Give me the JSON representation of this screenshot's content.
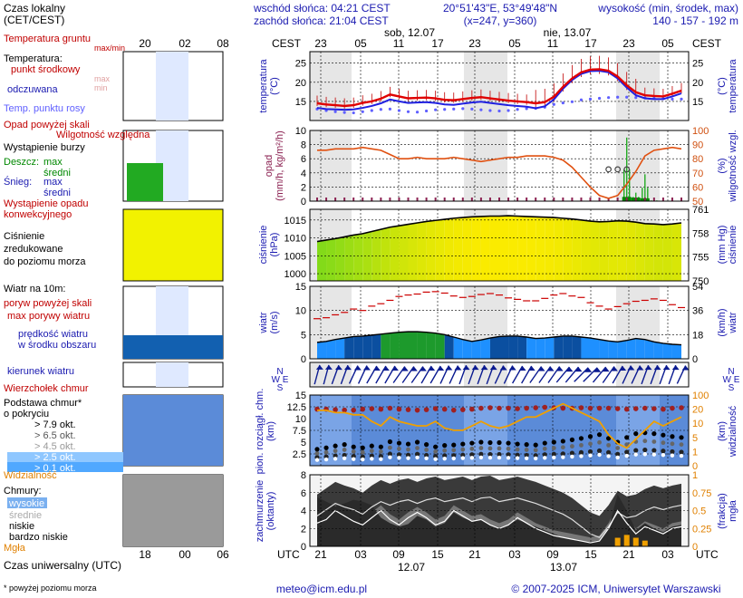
{
  "header": {
    "sunrise": "wschód słońca: 04:21 CEST",
    "sunset": "zachód słońca: 21:04 CEST",
    "coords": "20°51'43\"E, 53°49'48\"N",
    "grid": "(x=247, y=360)",
    "height_title": "wysokość (min, środek, max)",
    "height_vals": "140 - 157 - 192 m"
  },
  "legend": {
    "time_local": "Czas lokalny\n(CET/CEST)",
    "temp_ground": "Temperatura gruntu",
    "max_min": "max/min",
    "temperature": "Temperatura:",
    "mid_point": "punkt środkowy",
    "max_label": "max",
    "min_label": "min",
    "felt": "odczuwana",
    "dew_point": "Temp. punktu rosy",
    "precip_over": "Opad powyżej skali",
    "storm": "Wystąpienie burzy",
    "rain": "Deszcz:",
    "rain_max": "max",
    "rain_mid": "średni",
    "snow": "Śnieg:",
    "snow_max": "max",
    "snow_mid": "średni",
    "humidity": "Wilgotność względna",
    "conv": "Wystąpienie opadu\nkonwekcyjnego",
    "pressure": "Ciśnienie\nzredukowane\ndo poziomu morza",
    "wind_at": "Wiatr na 10m:",
    "gust_over": "poryw powyżej skali",
    "gust_max": "max porywy wiatru",
    "wind_avg": "prędkość wiatru\nw środku obszaru",
    "wind_dir": "kierunek wiatru",
    "cloud_top": "Wierzchołek chmur",
    "cloud_base": "Podstawa chmur*\no pokryciu",
    "okt_79": "> 7.9 okt.",
    "okt_65": "> 6.5 okt.",
    "okt_45": "> 4.5 okt.",
    "okt_25": "> 2.5 okt.",
    "okt_01": "> 0.1 okt.",
    "visibility": "Widzialność",
    "clouds": "Chmury:",
    "cl_high": "wysokie",
    "cl_mid": "średnie",
    "cl_low": "niskie",
    "cl_vlow": "bardzo niskie",
    "fog": "Mgła",
    "utc_time": "Czas uniwersalny (UTC)",
    "footnote": "* powyżej poziomu morza"
  },
  "axis_titles": {
    "cest": "CEST",
    "utc": "UTC",
    "temp_l": "temperatura\n(°C)",
    "temp_r": "(°C)\ntemperatura",
    "precip_l": "opad\n(mm/h, kg/m²/h)",
    "precip_r": "(%)\nwilgotność wzgl.",
    "press_l": "ciśnienie\n(hPa)",
    "press_r": "(mm Hg)\nciśnienie",
    "wind_l": "wiatr\n(m/s)",
    "wind_r": "(km/h)\nwiatr",
    "cloud_l": "pion. rozciągł. chm.\n(km)",
    "cloud_r": "(km)\nwidzialność",
    "cover_l": "zachmurzenie\n(oktanty)",
    "cover_r": "(frakcja)\nmgła",
    "compass": "N\nW  E\nS"
  },
  "time_axis": {
    "cest_ticks": [
      "23",
      "05",
      "11",
      "17",
      "23",
      "05",
      "11",
      "17",
      "23",
      "05"
    ],
    "utc_ticks": [
      "21",
      "03",
      "09",
      "15",
      "21",
      "03",
      "09",
      "15",
      "21",
      "03"
    ],
    "days_top": [
      "sob, 12.07",
      "nie, 13.07"
    ],
    "days_bottom": [
      "12.07",
      "13.07"
    ],
    "small_top": [
      "20",
      "02",
      "08"
    ],
    "small_bottom": [
      "18",
      "00",
      "06"
    ]
  },
  "footer": {
    "email": "meteo@icm.edu.pl",
    "copyright": "© 2007-2025 ICM, Uniwersytet Warszawski"
  },
  "colors": {
    "temp": "#e00000",
    "felt": "#2020e0",
    "dew": "#6060ff",
    "humidity": "#e05010",
    "pressure_fill": "#dde800",
    "wind_fill": "#0a7ad0",
    "visibility": "#f0a000",
    "night": "#e6e6e6",
    "cloud_bg": "#5b8bd8"
  },
  "chart_data": [
    {
      "id": "temperature",
      "type": "line",
      "ylabel": "temperatura (°C)",
      "ylim": [
        10,
        28
      ],
      "yticks": [
        15,
        20,
        25
      ],
      "series": [
        {
          "name": "punkt środkowy",
          "values": [
            14.5,
            14.2,
            14.0,
            13.8,
            14.0,
            14.6,
            15.0,
            15.7,
            16.8,
            16.3,
            15.8,
            15.9,
            16.0,
            15.8,
            15.4,
            15.3,
            15.6,
            15.9,
            16.1,
            15.8,
            15.5,
            15.2,
            15.0,
            14.8,
            14.5,
            14.8,
            16.2,
            18.8,
            21.0,
            22.6,
            23.3,
            23.4,
            23.0,
            21.5,
            19.2,
            17.4,
            16.6,
            16.4,
            16.3,
            17.0,
            17.8
          ]
        },
        {
          "name": "odczuwana",
          "values": [
            13.3,
            13.0,
            12.9,
            12.8,
            12.9,
            13.3,
            13.8,
            14.5,
            15.5,
            15.0,
            14.6,
            14.7,
            14.8,
            14.6,
            14.2,
            14.1,
            14.4,
            14.7,
            14.9,
            14.6,
            14.3,
            14.0,
            13.8,
            13.6,
            13.2,
            13.7,
            15.5,
            18.3,
            20.6,
            22.2,
            22.9,
            23.0,
            22.6,
            21.0,
            18.6,
            16.6,
            15.8,
            15.6,
            15.6,
            16.3,
            17.1
          ]
        },
        {
          "name": "Temp. punktu rosy",
          "values": [
            13.0,
            12.6,
            12.3,
            12.1,
            12.0,
            12.3,
            12.6,
            12.9,
            13.0,
            12.6,
            12.3,
            12.2,
            12.5,
            12.8,
            12.9,
            13.0,
            13.1,
            13.0,
            12.8,
            12.6,
            12.5,
            12.6,
            12.9,
            13.1,
            13.2,
            13.5,
            14.2,
            14.6,
            14.9,
            15.4,
            15.6,
            15.8,
            16.0,
            16.1,
            16.1,
            16.0,
            15.9,
            15.8,
            15.7,
            15.6,
            15.6
          ]
        }
      ]
    },
    {
      "id": "precipitation",
      "type": "line",
      "ylabel": "opad (mm/h, kg/m²/h)",
      "ylim": [
        0,
        10
      ],
      "yticks": [
        0,
        2,
        4,
        6,
        8,
        10
      ],
      "y2label": "wilgotność wzgl. (%)",
      "y2lim": [
        50,
        100
      ],
      "y2ticks": [
        50,
        60,
        70,
        80,
        90,
        100
      ],
      "series": [
        {
          "name": "Wilgotność względna",
          "values": [
            86,
            86,
            87,
            87,
            87,
            88,
            87,
            86,
            83,
            80,
            80,
            81,
            80,
            80,
            80,
            81,
            80,
            79,
            78,
            79,
            80,
            81,
            81,
            82,
            82,
            82,
            81,
            79,
            74,
            67,
            60,
            54,
            52,
            54,
            62,
            71,
            82,
            86,
            87,
            88,
            87
          ]
        },
        {
          "name": "Deszcz max",
          "values": [
            0,
            0,
            0,
            0,
            0,
            0,
            0,
            0,
            0,
            0,
            0,
            0,
            0,
            0,
            0,
            0,
            0,
            0,
            0,
            0,
            0,
            0,
            0,
            0,
            0,
            0,
            0,
            0,
            0,
            0,
            0,
            0,
            0,
            0,
            9.0,
            1.2,
            3.8,
            0.2,
            0,
            0,
            0
          ]
        },
        {
          "name": "Deszcz średni",
          "values": [
            0,
            0,
            0,
            0,
            0,
            0,
            0,
            0,
            0,
            0,
            0,
            0,
            0,
            0,
            0,
            0,
            0,
            0,
            0,
            0,
            0,
            0,
            0,
            0,
            0,
            0,
            0,
            0,
            0,
            0,
            0,
            0,
            0,
            0,
            0.6,
            0.5,
            0.4,
            0,
            0,
            0,
            0
          ]
        }
      ]
    },
    {
      "id": "pressure",
      "type": "area",
      "ylabel": "ciśnienie (hPa)",
      "ylim": [
        998,
        1018
      ],
      "yticks": [
        1000,
        1005,
        1010,
        1015
      ],
      "y2label": "ciśnienie (mm Hg)",
      "y2ticks": [
        750,
        755,
        758,
        761
      ],
      "series": [
        {
          "name": "Ciśnienie",
          "values": [
            1009.0,
            1009.4,
            1009.8,
            1010.3,
            1010.8,
            1011.2,
            1011.8,
            1012.4,
            1013.0,
            1013.4,
            1013.8,
            1014.2,
            1014.6,
            1014.9,
            1015.2,
            1015.5,
            1015.7,
            1015.9,
            1016.0,
            1016.1,
            1016.1,
            1016.2,
            1016.1,
            1016.0,
            1015.9,
            1015.8,
            1015.7,
            1015.5,
            1015.3,
            1015.0,
            1014.7,
            1014.5,
            1014.6,
            1014.8,
            1014.7,
            1014.4,
            1014.0,
            1013.9,
            1013.7,
            1013.9,
            1014.2
          ]
        }
      ]
    },
    {
      "id": "wind",
      "type": "area",
      "ylabel": "wiatr (m/s)",
      "ylim": [
        0,
        15
      ],
      "yticks": [
        0,
        5,
        10,
        15
      ],
      "y2label": "wiatr (km/h)",
      "y2ticks": [
        0,
        18,
        36,
        54
      ],
      "series": [
        {
          "name": "max porywy wiatru",
          "values": [
            8.3,
            8.5,
            9.1,
            9.6,
            10.3,
            10.0,
            10.9,
            11.4,
            12.1,
            12.9,
            13.2,
            13.4,
            13.8,
            13.9,
            13.6,
            13.0,
            12.7,
            12.9,
            13.3,
            13.5,
            13.2,
            12.6,
            12.3,
            12.0,
            12.0,
            12.5,
            13.2,
            13.5,
            13.0,
            12.7,
            11.6,
            10.9,
            10.3,
            10.8,
            11.4,
            11.9,
            12.1,
            12.4,
            12.1,
            11.2,
            10.6
          ]
        },
        {
          "name": "prędkość wiatru",
          "values": [
            3.4,
            3.6,
            4.0,
            4.3,
            4.6,
            4.7,
            4.9,
            5.1,
            5.3,
            5.5,
            5.6,
            5.6,
            5.5,
            5.3,
            5.0,
            4.5,
            4.0,
            3.6,
            3.9,
            4.3,
            4.6,
            4.7,
            4.7,
            4.5,
            4.2,
            4.3,
            4.5,
            4.7,
            4.7,
            4.5,
            4.3,
            4.0,
            3.7,
            3.5,
            3.8,
            4.2,
            4.0,
            3.5,
            3.2,
            3.0,
            2.9
          ]
        }
      ]
    },
    {
      "id": "wind_direction",
      "type": "scatter",
      "ylabel": "kierunek wiatru",
      "series": [
        {
          "name": "kierunek wiatru (°)",
          "values": [
            195,
            195,
            200,
            200,
            205,
            205,
            210,
            210,
            210,
            215,
            215,
            215,
            210,
            210,
            205,
            205,
            200,
            200,
            200,
            200,
            205,
            205,
            210,
            210,
            215,
            215,
            215,
            220,
            220,
            225,
            225,
            220,
            215,
            210,
            205,
            205,
            200,
            200,
            200,
            200,
            205
          ]
        }
      ]
    },
    {
      "id": "cloud_base",
      "type": "scatter",
      "ylabel": "pion. rozciągł. chm. (km)",
      "ylim": [
        0,
        15
      ],
      "yticks": [
        0,
        2.5,
        5,
        7.5,
        10,
        12.5,
        15
      ],
      "y2label": "widzialność (km)",
      "y2ticks": [
        0,
        1,
        5,
        10,
        20,
        100
      ],
      "series": [
        {
          "name": "Wierzchołek chmur",
          "values": [
            12.0,
            12.0,
            11.9,
            11.8,
            11.8,
            12.0,
            12.1,
            12.0,
            12.2,
            12.0,
            11.9,
            11.8,
            11.9,
            12.1,
            12.0,
            11.8,
            11.9,
            12.0,
            12.2,
            12.3,
            12.2,
            12.2,
            12.1,
            12.2,
            12.3,
            12.4,
            12.3,
            12.2,
            12.2,
            12.3,
            12.2,
            12.2,
            12.2,
            12.1,
            12.0,
            12.1,
            12.2,
            12.1,
            12.0,
            12.2,
            12.3
          ]
        },
        {
          "name": "Podstawa chmur > 7.9 okt.",
          "values": [
            3.5,
            3.8,
            4.2,
            4.5,
            4.0,
            3.8,
            4.2,
            4.0,
            5.1,
            4.8,
            4.6,
            5.0,
            4.5,
            4.0,
            4.3,
            4.4,
            4.6,
            4.8,
            5.0,
            4.9,
            4.9,
            4.8,
            4.6,
            4.5,
            4.4,
            4.8,
            5.0,
            5.2,
            5.5,
            5.8,
            6.2,
            6.6,
            5.8,
            5.0,
            6.0,
            6.8,
            7.0,
            6.8,
            6.5,
            6.2,
            6.0
          ]
        },
        {
          "name": "Widzialność",
          "values": [
            25,
            25,
            24,
            24,
            23,
            23,
            20,
            18,
            22,
            20,
            19,
            18,
            18,
            20,
            17,
            16,
            16,
            18,
            20,
            18,
            17,
            18,
            20,
            22,
            22,
            24,
            26,
            28,
            26,
            24,
            22,
            20,
            14,
            10,
            8,
            12,
            16,
            20,
            18,
            20,
            22
          ]
        }
      ]
    },
    {
      "id": "cloud_cover",
      "type": "area",
      "ylabel": "zachmurzenie (oktanty)",
      "ylim": [
        0,
        8
      ],
      "yticks": [
        0,
        2,
        4,
        6,
        8
      ],
      "y2label": "mgła (frakcja)",
      "y2ticks": [
        0,
        0.25,
        0.5,
        0.75,
        1
      ],
      "series": [
        {
          "name": "niskie",
          "values": [
            5.5,
            5.0,
            4.5,
            4.8,
            5.2,
            5.0,
            4.6,
            3.2,
            2.6,
            2.2,
            2.5,
            3.4,
            3.0,
            2.2,
            2.6,
            3.8,
            3.2,
            2.8,
            3.0,
            2.4,
            2.1,
            2.4,
            3.0,
            2.6,
            2.2,
            1.8,
            1.4,
            1.0,
            0.8,
            0.6,
            0.5,
            0.7,
            2.0,
            5.8,
            4.0,
            1.8,
            2.6,
            2.0,
            1.6,
            2.2,
            2.4
          ]
        },
        {
          "name": "średnie",
          "values": [
            3.2,
            3.6,
            4.6,
            4.0,
            3.4,
            3.0,
            3.8,
            4.6,
            3.6,
            3.0,
            3.8,
            4.4,
            3.8,
            3.0,
            3.4,
            4.6,
            4.0,
            3.4,
            3.6,
            3.0,
            2.6,
            3.0,
            3.8,
            3.2,
            2.6,
            2.2,
            1.8,
            1.6,
            1.4,
            1.2,
            1.0,
            1.2,
            2.6,
            4.6,
            3.2,
            2.0,
            2.8,
            2.4,
            2.0,
            2.6,
            2.8
          ]
        },
        {
          "name": "wysokie",
          "values": [
            5.8,
            6.5,
            7.2,
            6.8,
            6.5,
            6.0,
            6.8,
            7.4,
            7.0,
            7.4,
            7.6,
            7.2,
            7.6,
            7.8,
            7.4,
            7.6,
            7.8,
            7.4,
            7.8,
            7.9,
            7.4,
            7.6,
            7.8,
            7.5,
            7.2,
            6.8,
            6.4,
            6.0,
            5.4,
            4.6,
            3.8,
            3.4,
            4.6,
            6.2,
            5.6,
            5.8,
            6.4,
            6.8,
            6.5,
            6.8,
            7.0
          ]
        },
        {
          "name": "Mgła",
          "values": [
            0,
            0,
            0,
            0,
            0,
            0,
            0,
            0,
            0,
            0,
            0,
            0,
            0,
            0,
            0,
            0,
            0,
            0,
            0,
            0,
            0,
            0,
            0,
            0,
            0,
            0,
            0,
            0,
            0,
            0,
            0,
            0,
            0,
            0.06,
            0.08,
            0.06,
            0.04,
            0,
            0,
            0,
            0
          ]
        }
      ]
    }
  ]
}
